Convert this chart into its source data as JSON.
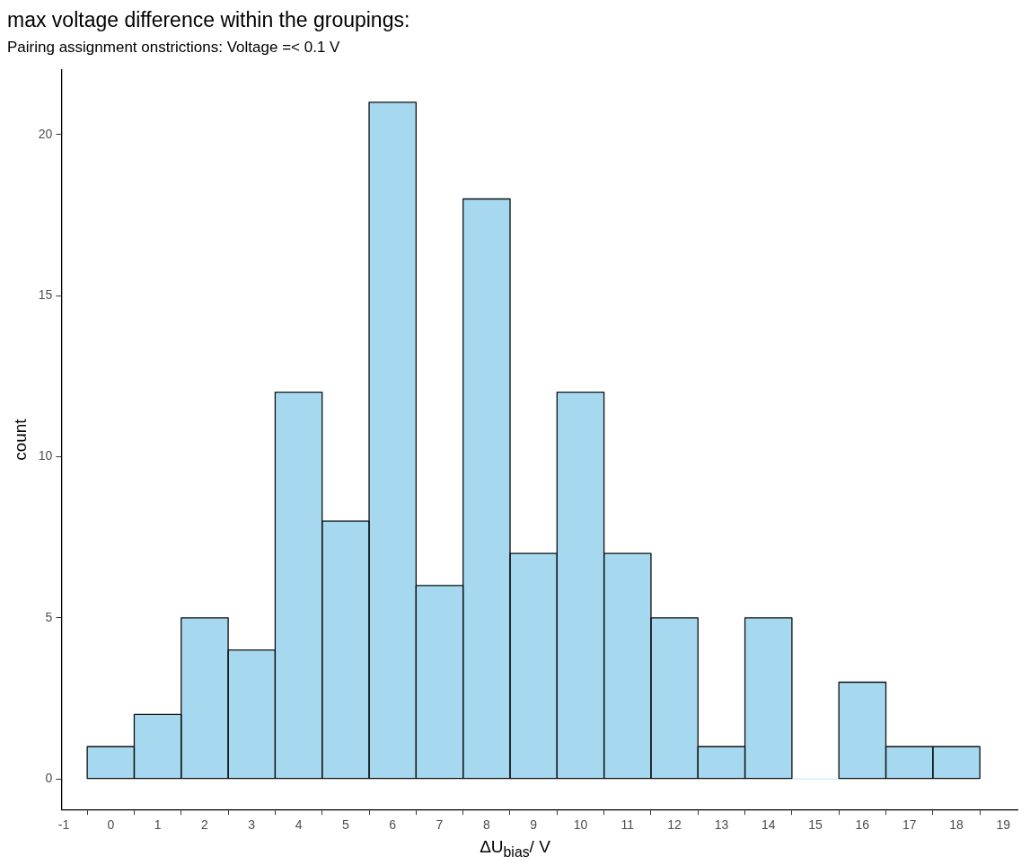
{
  "chart_data": {
    "type": "histogram",
    "title": "max voltage difference within the groupings:",
    "subtitle": "Pairing assignment onstrictions: Voltage =< 0.1 V",
    "xlabel": "ΔU$_{bias}$/ V",
    "ylabel": "count",
    "bins": [
      -0.5,
      0.5,
      1.5,
      2.5,
      3.5,
      4.5,
      5.5,
      6.5,
      7.5,
      8.5,
      9.5,
      10.5,
      11.5,
      12.5,
      13.5,
      14.5,
      15.5,
      16.5,
      17.5,
      18.5
    ],
    "values": [
      1,
      2,
      5,
      4,
      12,
      8,
      21,
      6,
      18,
      7,
      12,
      7,
      5,
      1,
      5,
      0,
      3,
      1,
      1
    ],
    "color": "#a6d9ef",
    "xlim": [
      -1.05,
      19.3
    ],
    "xticks": [
      -1,
      0,
      1,
      2,
      3,
      4,
      5,
      6,
      7,
      8,
      9,
      10,
      11,
      12,
      13,
      14,
      15,
      16,
      17,
      18,
      19
    ],
    "ylim": [
      -0.95,
      22
    ],
    "yticks": [
      0,
      5,
      10,
      15,
      20
    ],
    "grid": false,
    "legend": false
  }
}
